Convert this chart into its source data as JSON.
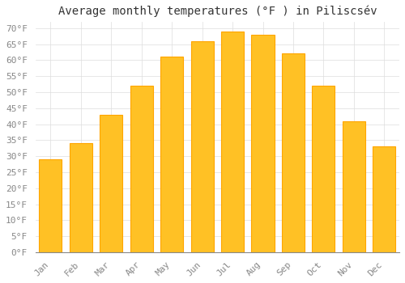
{
  "title": "Average monthly temperatures (°F ) in Piliscsév",
  "months": [
    "Jan",
    "Feb",
    "Mar",
    "Apr",
    "May",
    "Jun",
    "Jul",
    "Aug",
    "Sep",
    "Oct",
    "Nov",
    "Dec"
  ],
  "values": [
    29,
    34,
    43,
    52,
    61,
    66,
    69,
    68,
    62,
    52,
    41,
    33
  ],
  "bar_color": "#FFC125",
  "bar_edge_color": "#FFA500",
  "background_color": "#FFFFFF",
  "grid_color": "#DDDDDD",
  "yticks": [
    0,
    5,
    10,
    15,
    20,
    25,
    30,
    35,
    40,
    45,
    50,
    55,
    60,
    65,
    70
  ],
  "ylim": [
    0,
    72
  ],
  "title_fontsize": 10,
  "tick_fontsize": 8,
  "font_family": "monospace"
}
